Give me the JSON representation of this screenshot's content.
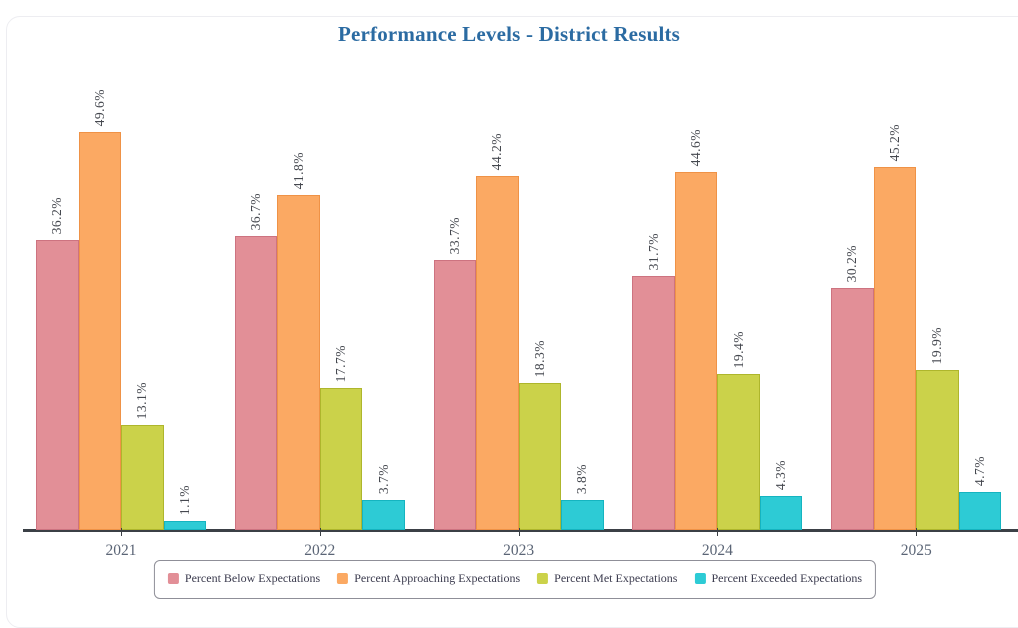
{
  "chart_data": {
    "type": "bar",
    "title": "Performance Levels - District Results",
    "categories": [
      "2021",
      "2022",
      "2023",
      "2024",
      "2025"
    ],
    "series": [
      {
        "name": "Percent Below Expectations",
        "color": "#e28f97",
        "border": "#cd7380",
        "values": [
          36.2,
          36.7,
          33.7,
          31.7,
          30.2
        ]
      },
      {
        "name": "Percent Approaching Expectations",
        "color": "#fba963",
        "border": "#ef9246",
        "values": [
          49.6,
          41.8,
          44.2,
          44.6,
          45.2
        ]
      },
      {
        "name": "Percent Met Expectations",
        "color": "#cbd24a",
        "border": "#aeb62c",
        "values": [
          13.1,
          17.7,
          18.3,
          19.4,
          19.9
        ]
      },
      {
        "name": "Percent Exceeded Expectations",
        "color": "#2dcbd5",
        "border": "#15b4c0",
        "values": [
          1.1,
          3.7,
          3.8,
          4.3,
          4.7
        ]
      }
    ],
    "value_label_suffix": "%",
    "value_labels_rotated": true,
    "xlabel": "",
    "ylabel": "",
    "ylim": [
      0,
      59
    ],
    "grid": false,
    "legend_position": "bottom"
  },
  "style": {
    "title_color": "#2b6ba2",
    "axis_color": "#3b4046",
    "tick_label_color": "#5b6576",
    "value_label_color": "#45484f",
    "legend_border_color": "#8f8f98",
    "legend_text_color": "#3b3b4e"
  }
}
